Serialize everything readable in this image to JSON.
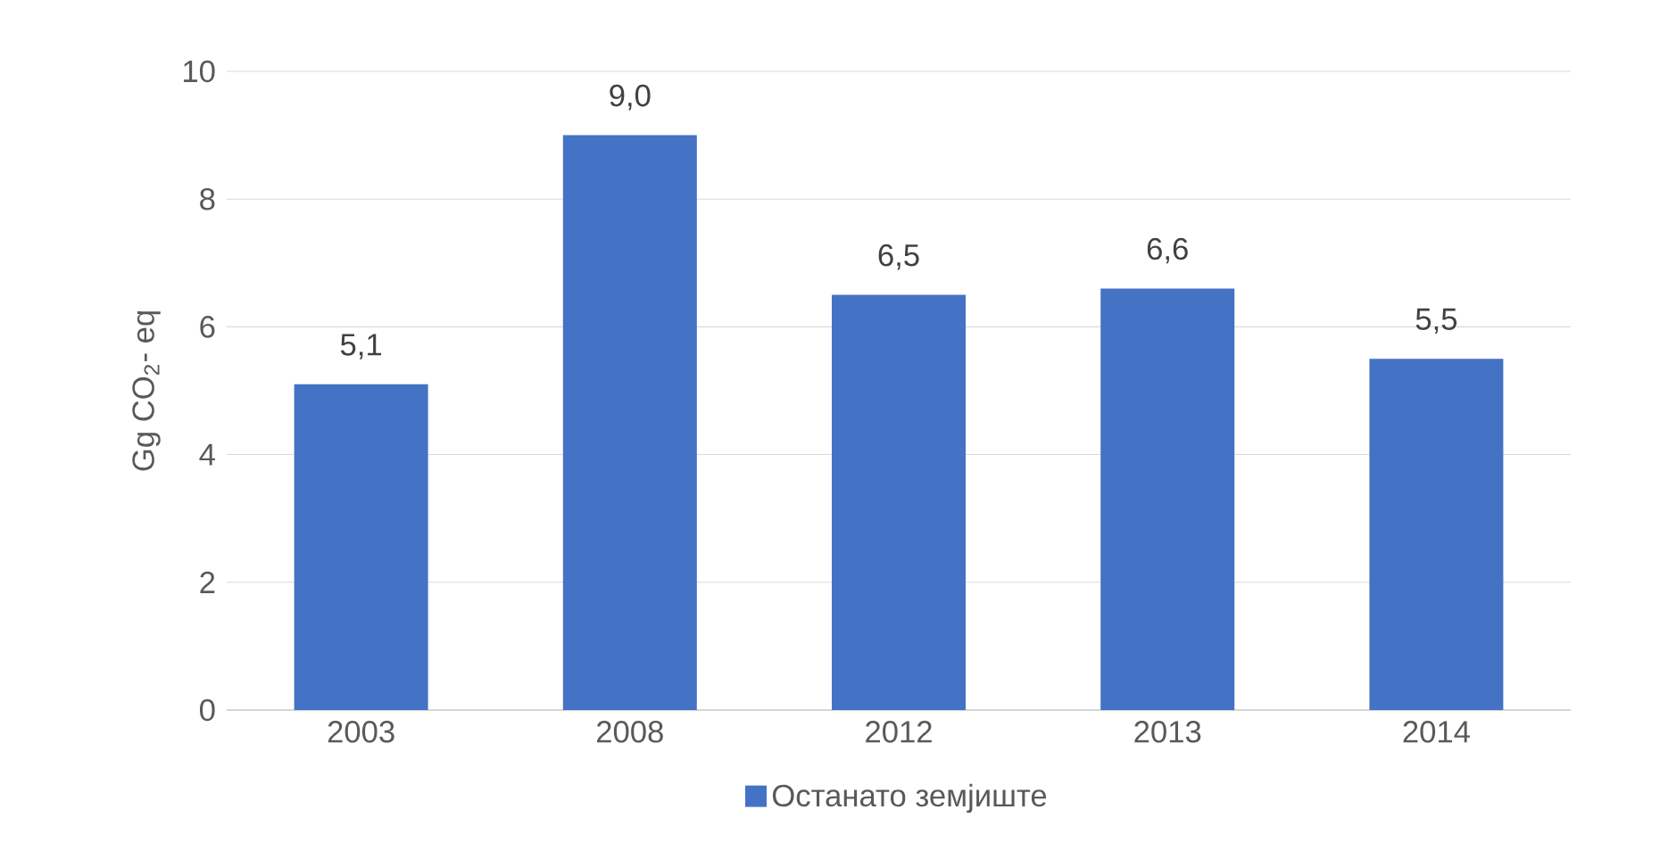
{
  "chart_data": {
    "type": "bar",
    "ylabel": "Gg CO$_{2}$- eq",
    "categories": [
      "2003",
      "2008",
      "2012",
      "2013",
      "2014"
    ],
    "series": [
      {
        "name": "Останато земјиште",
        "color": "#4472c4",
        "values": [
          5.1,
          9.0,
          6.5,
          6.6,
          5.5
        ],
        "value_labels": [
          "5,1",
          "9,0",
          "6,5",
          "6,6",
          "5,5"
        ]
      }
    ],
    "ylim": [
      0,
      10
    ],
    "yticks": [
      0,
      2,
      4,
      6,
      8,
      10
    ],
    "grid": "y",
    "legend": "bottom"
  }
}
